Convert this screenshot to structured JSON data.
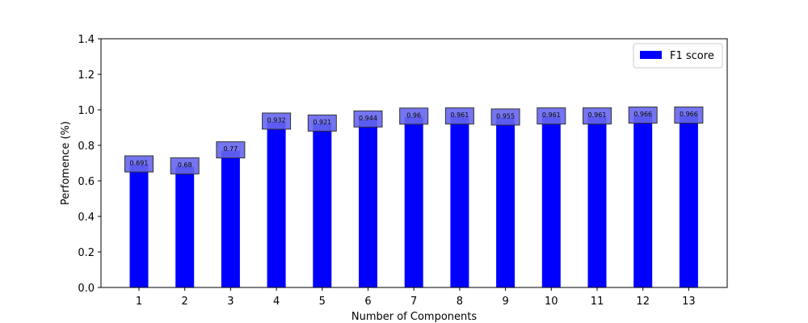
{
  "chart_data": {
    "type": "bar",
    "categories": [
      "1",
      "2",
      "3",
      "4",
      "5",
      "6",
      "7",
      "8",
      "9",
      "10",
      "11",
      "12",
      "13"
    ],
    "series": [
      {
        "name": "F1 score",
        "values": [
          0.691,
          0.68,
          0.77,
          0.932,
          0.921,
          0.944,
          0.96,
          0.961,
          0.955,
          0.961,
          0.961,
          0.966,
          0.966
        ],
        "color": "#0000ff"
      }
    ],
    "data_labels": [
      "0.691",
      "0.68",
      "0.77",
      "0.932",
      "0.921",
      "0.944",
      "0.96",
      "0.961",
      "0.955",
      "0.961",
      "0.961",
      "0.966",
      "0.966"
    ],
    "xlabel": "Number of Components",
    "ylabel": "Perfomence (%)",
    "ylim": [
      0,
      1.4
    ],
    "yticks": [
      0.0,
      0.2,
      0.4,
      0.6,
      0.8,
      1.0,
      1.2,
      1.4
    ],
    "ytick_labels": [
      "0.0",
      "0.2",
      "0.4",
      "0.6",
      "0.8",
      "1.0",
      "1.2",
      "1.4"
    ],
    "grid": false,
    "legend_position": "top-right",
    "label_box_color": "#6666ee"
  }
}
